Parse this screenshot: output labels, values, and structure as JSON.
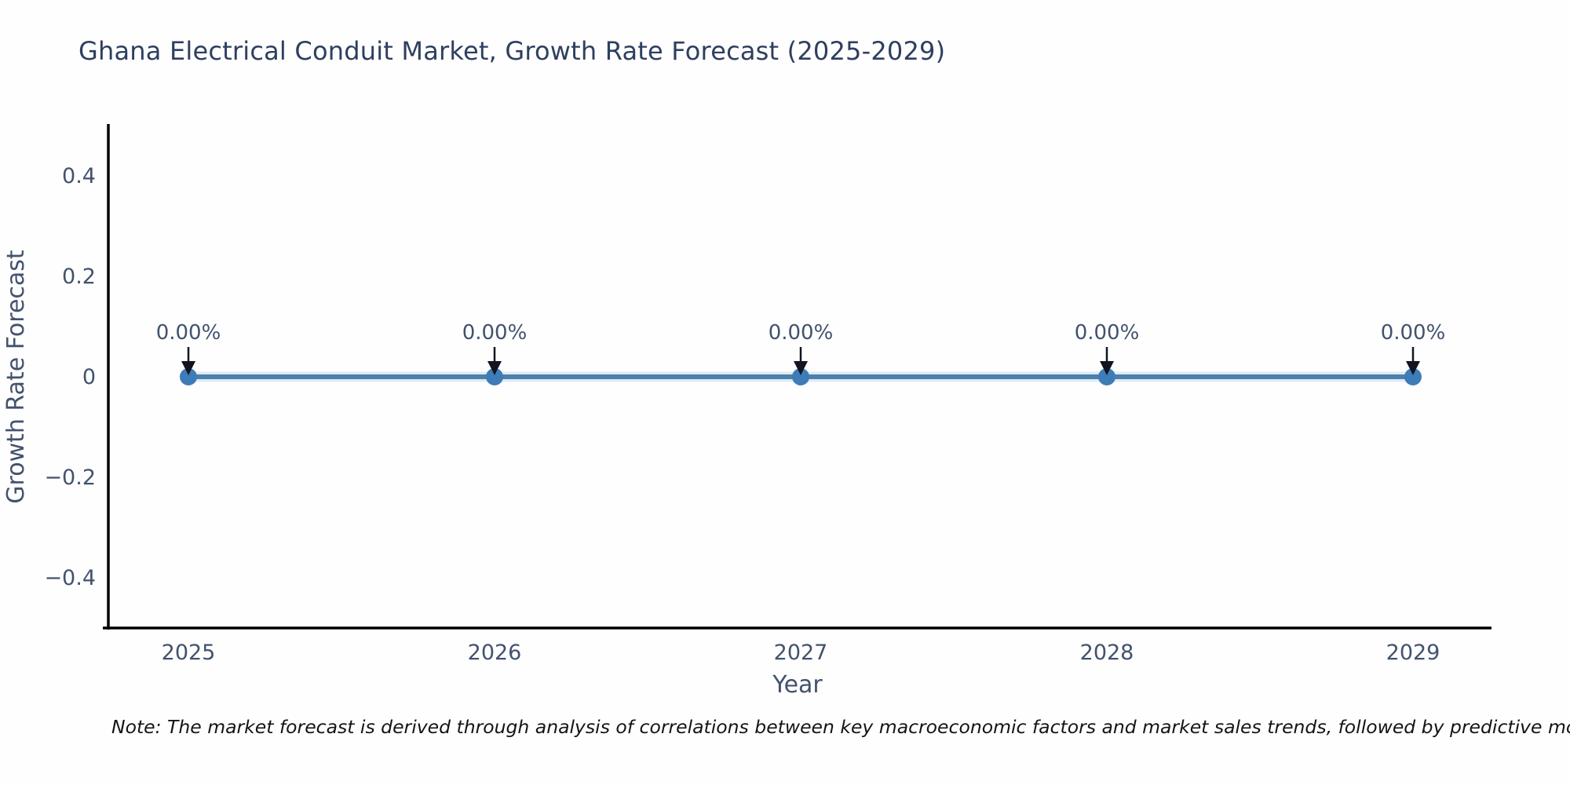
{
  "note": "Note: The market forecast is derived through analysis of correlations between key macroeconomic factors and market sales trends, followed by predictive modeling to project future sa",
  "chart_data": {
    "type": "line",
    "title": "Ghana Electrical Conduit Market, Growth Rate Forecast (2025-2029)",
    "xlabel": "Year",
    "ylabel": "Growth Rate Forecast",
    "x": [
      2025,
      2026,
      2027,
      2028,
      2029
    ],
    "series": [
      {
        "name": "Growth Rate Forecast",
        "values": [
          0,
          0,
          0,
          0,
          0
        ]
      }
    ],
    "annotations": [
      "0.00%",
      "0.00%",
      "0.00%",
      "0.00%",
      "0.00%"
    ],
    "ylim": [
      -0.5,
      0.5
    ],
    "yticks": [
      0.4,
      0.2,
      0,
      -0.2,
      -0.4
    ],
    "grid": false,
    "legend": "none",
    "markers": true,
    "colors": {
      "line": "#4d80ab",
      "line_halo": "rgba(110,170,215,0.22)",
      "marker": "#3e7cb7",
      "arrow": "#121420",
      "tick_text": "#42526e",
      "axis": "#000000",
      "title_text": "#2e3f5f",
      "note_text": "#141414"
    }
  }
}
